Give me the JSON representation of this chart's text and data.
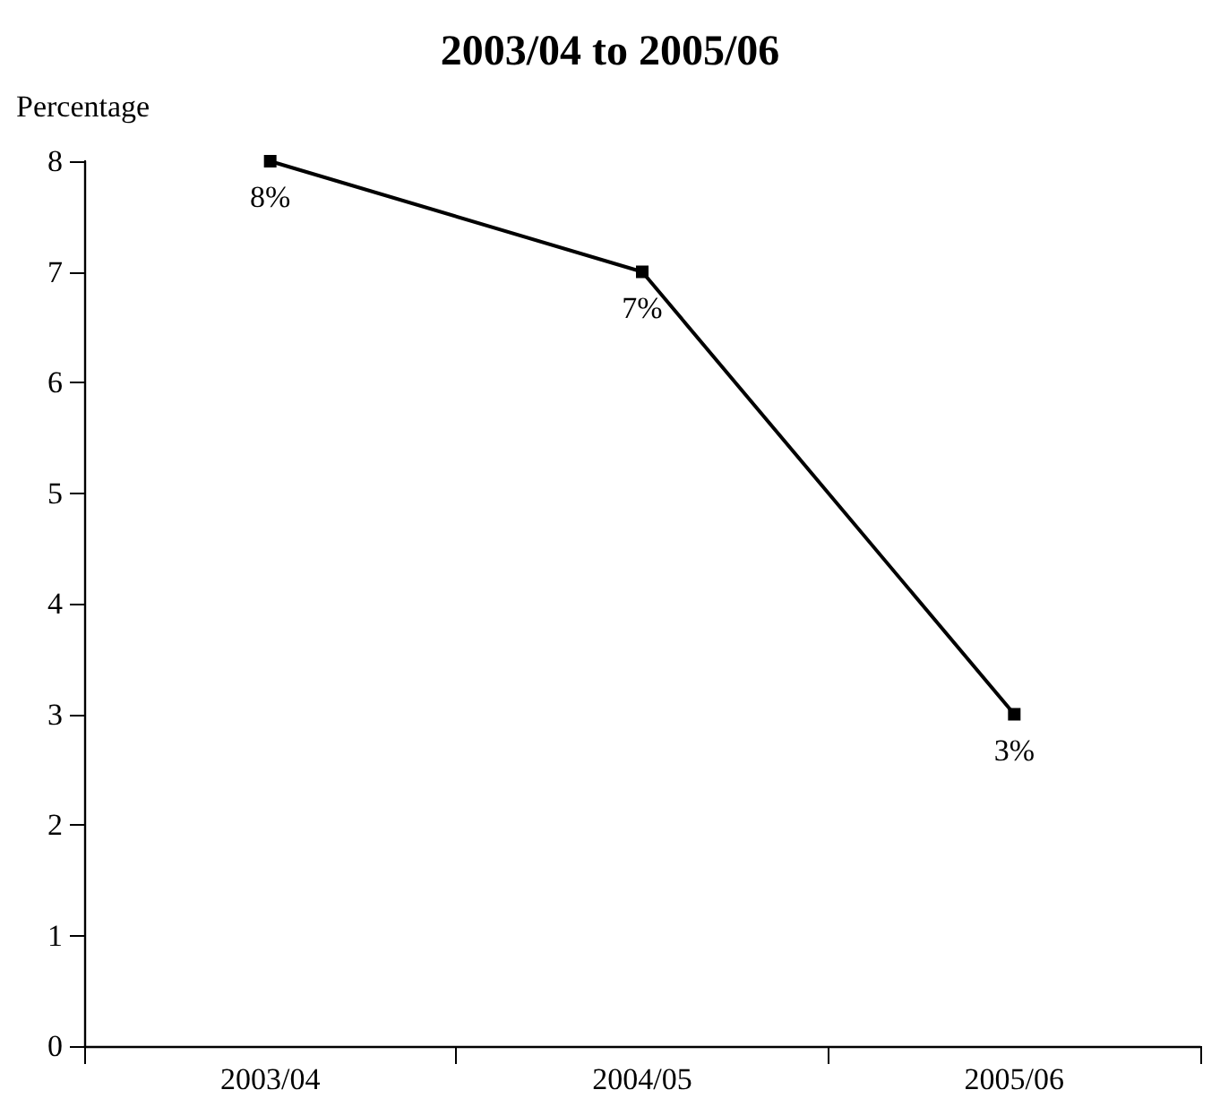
{
  "chart_data": {
    "type": "line",
    "title": "2003/04 to 2005/06",
    "ylabel": "Percentage",
    "categories": [
      "2003/04",
      "2004/05",
      "2005/06"
    ],
    "series": [
      {
        "color": "#000000",
        "values": [
          8,
          7,
          3
        ],
        "value_labels": [
          "8%",
          "7%",
          "3%"
        ]
      }
    ],
    "ylim": [
      0,
      8
    ],
    "yticks": [
      0,
      1,
      2,
      3,
      4,
      5,
      6,
      7,
      8
    ],
    "marker": "square",
    "line_style": "solid"
  }
}
